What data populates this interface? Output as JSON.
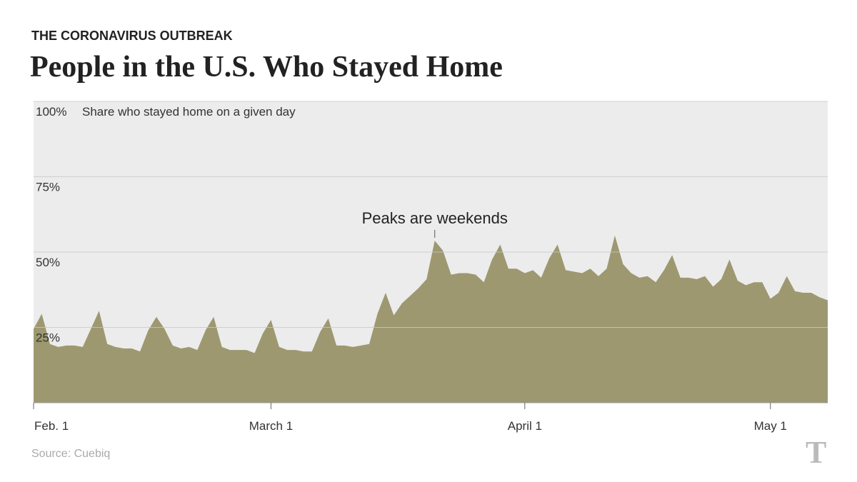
{
  "kicker": "THE CORONAVIRUS OUTBREAK",
  "source": "Source: Cuebiq",
  "chart_data": {
    "type": "area",
    "title": "People in the U.S. Who Stayed Home",
    "y_label": "Share who stayed home on a given day",
    "annotation": "Peaks are weekends",
    "color": "#9d9870",
    "grid": true,
    "ylim": [
      0,
      100
    ],
    "yticks": [
      {
        "value": 25,
        "label": "25%"
      },
      {
        "value": 50,
        "label": "50%"
      },
      {
        "value": 75,
        "label": "75%"
      },
      {
        "value": 100,
        "label": "100%"
      }
    ],
    "categories": [
      "Feb. 1",
      null,
      null,
      null,
      null,
      null,
      null,
      null,
      null,
      null,
      null,
      null,
      null,
      null,
      null,
      null,
      null,
      null,
      null,
      null,
      null,
      null,
      null,
      null,
      null,
      null,
      null,
      null,
      null,
      "March 1",
      null,
      null,
      null,
      null,
      null,
      null,
      null,
      null,
      null,
      null,
      null,
      null,
      null,
      null,
      null,
      null,
      null,
      null,
      null,
      null,
      null,
      null,
      null,
      null,
      null,
      null,
      null,
      null,
      null,
      null,
      "April 1",
      null,
      null,
      null,
      null,
      null,
      null,
      null,
      null,
      null,
      null,
      null,
      null,
      null,
      null,
      null,
      null,
      null,
      null,
      null,
      null,
      null,
      null,
      null,
      null,
      null,
      null,
      null,
      null,
      null,
      "May 1",
      null,
      null,
      null,
      null,
      null,
      null,
      null
    ],
    "values": [
      24.5,
      29.5,
      19.5,
      18.5,
      19,
      19,
      18.5,
      24.5,
      30.5,
      19.5,
      18.5,
      18,
      18,
      17,
      24,
      28.5,
      24.5,
      19,
      18,
      18.5,
      17.5,
      24,
      28.5,
      18.5,
      17.5,
      17.5,
      17.5,
      16.5,
      23,
      27.5,
      18.5,
      17.5,
      17.5,
      17,
      17,
      23.5,
      28,
      19,
      19,
      18.5,
      19,
      19.5,
      29.5,
      36.5,
      29,
      33,
      35.5,
      38,
      41,
      53.8,
      50.5,
      42.5,
      43,
      43,
      42.5,
      40,
      47.5,
      52.5,
      44.5,
      44.5,
      43,
      44,
      41.5,
      48,
      52.5,
      44,
      43.5,
      43,
      44.5,
      42,
      44.5,
      55.5,
      46,
      43,
      41.5,
      42,
      40,
      44,
      49,
      41.5,
      41.5,
      41,
      42,
      38.5,
      41,
      47.5,
      40.5,
      39,
      40,
      40,
      34.5,
      36.5,
      42,
      37,
      36.5,
      36.5,
      35,
      34
    ]
  }
}
